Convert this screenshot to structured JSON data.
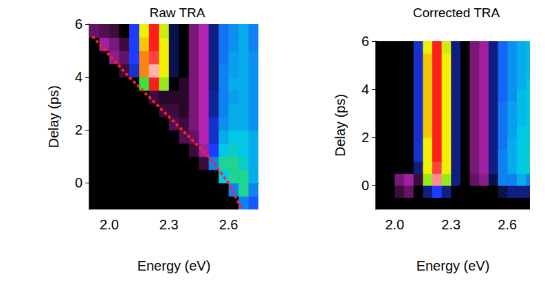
{
  "chart_data": [
    {
      "type": "heatmap",
      "title": "Raw TRA",
      "x_label": "Energy (eV)",
      "y_label": "Delay (ps)",
      "xlim": [
        1.9,
        2.75
      ],
      "ylim": [
        -1,
        6
      ],
      "xticks": [
        {
          "value": 2,
          "label": "2.0"
        },
        {
          "value": 2.3,
          "label": "2.3"
        },
        {
          "value": 2.6,
          "label": "2.6"
        }
      ],
      "yticks": [
        0,
        2,
        4,
        6
      ],
      "cells": {
        "x_edges": [
          1.9,
          1.95,
          2.0,
          2.05,
          2.1,
          2.15,
          2.2,
          2.25,
          2.3,
          2.35,
          2.4,
          2.45,
          2.5,
          2.55,
          2.6,
          2.65,
          2.7,
          2.75
        ],
        "y_edges": [
          -1,
          -0.5,
          0,
          0.5,
          1,
          1.5,
          2,
          2.5,
          3,
          3.5,
          4,
          4.5,
          5,
          5.5,
          6
        ],
        "color_range": [
          -1,
          6
        ],
        "values": [
          [
            0,
            0,
            0,
            0,
            0,
            0,
            0,
            0,
            0,
            0,
            0,
            0,
            0,
            0,
            0,
            1.5,
            1.2
          ],
          [
            0,
            0,
            0,
            0,
            0,
            0,
            0,
            0,
            0,
            0,
            0,
            0,
            0,
            0,
            1.5,
            2.5,
            1.5
          ],
          [
            0,
            0,
            0,
            0,
            0,
            0,
            0,
            0,
            0,
            0,
            0,
            0,
            0,
            2,
            2.5,
            2.5,
            1.8
          ],
          [
            0,
            0,
            0,
            0,
            0,
            0,
            0,
            0,
            0,
            0,
            0,
            -0.3,
            1.5,
            2.5,
            2.5,
            2.2,
            1.8
          ],
          [
            0,
            0,
            0,
            0,
            0,
            0,
            0,
            0,
            0,
            0,
            -0.3,
            -0.8,
            1,
            2,
            2.2,
            2,
            1.8
          ],
          [
            0,
            0,
            0,
            0,
            0,
            0,
            0,
            0,
            0,
            -0.4,
            -0.5,
            -0.9,
            0.8,
            1.8,
            2,
            2,
            1.8
          ],
          [
            0,
            0,
            0,
            0,
            0,
            0,
            0,
            0,
            -0.4,
            -0.3,
            -0.6,
            -0.9,
            0.8,
            1.6,
            1.8,
            1.8,
            1.6
          ],
          [
            0,
            0,
            0,
            0,
            0,
            0,
            0,
            -0.3,
            -0.3,
            -0.2,
            -0.6,
            -0.9,
            0.6,
            1.5,
            1.8,
            1.8,
            1.6
          ],
          [
            0,
            0,
            0,
            0,
            0,
            0,
            -0.3,
            -0.2,
            -0.2,
            -0.2,
            -0.6,
            -0.9,
            0.6,
            1.5,
            1.7,
            1.8,
            1.6
          ],
          [
            0,
            0,
            0,
            0,
            0,
            3,
            5,
            3.5,
            0,
            -0.2,
            -0.6,
            -0.9,
            0.5,
            1.5,
            1.8,
            1.8,
            1.6
          ],
          [
            0,
            0,
            0,
            -0.3,
            0.8,
            4.5,
            5.8,
            4,
            0.3,
            0,
            -0.6,
            -0.9,
            0.5,
            1.5,
            1.7,
            1.8,
            1.6
          ],
          [
            0,
            0,
            -0.7,
            -0.5,
            1,
            4.5,
            5.2,
            4,
            0.3,
            0,
            -0.6,
            -0.9,
            0.5,
            1.4,
            1.7,
            1.8,
            1.6
          ],
          [
            0,
            -0.8,
            -0.6,
            -0.3,
            1,
            4.2,
            5,
            4,
            0.3,
            0,
            -0.6,
            -0.9,
            0.5,
            1.4,
            1.6,
            1.8,
            1.5
          ],
          [
            -0.5,
            -0.4,
            -0.3,
            0,
            1,
            4,
            5,
            3.8,
            0.3,
            0,
            -0.6,
            -0.9,
            0.5,
            1.4,
            1.6,
            1.8,
            1.5
          ]
        ]
      },
      "series": [
        {
          "type": "line",
          "color": "#ff2020",
          "line_style": "dotted",
          "x": [
            1.92,
            2.1,
            2.3,
            2.5,
            2.6,
            2.66
          ],
          "values": [
            5.5,
            4.0,
            2.5,
            1.0,
            0.0,
            -0.9
          ]
        }
      ]
    },
    {
      "type": "heatmap",
      "title": "Corrected TRA",
      "x_label": "Energy (eV)",
      "y_label": "Delay (ps)",
      "xlim": [
        1.9,
        2.72
      ],
      "ylim": [
        -1,
        6
      ],
      "xticks": [
        {
          "value": 2,
          "label": "2.0"
        },
        {
          "value": 2.3,
          "label": "2.3"
        },
        {
          "value": 2.6,
          "label": "2.6"
        }
      ],
      "yticks": [
        0,
        2,
        4,
        6
      ],
      "cells": {
        "x_edges": [
          1.9,
          1.95,
          2.0,
          2.05,
          2.1,
          2.15,
          2.2,
          2.25,
          2.3,
          2.35,
          2.4,
          2.45,
          2.5,
          2.55,
          2.6,
          2.65,
          2.7,
          2.75
        ],
        "y_edges": [
          -1,
          -0.5,
          0,
          0.5,
          1,
          1.5,
          2,
          2.5,
          3,
          3.5,
          4,
          4.5,
          5,
          5.5,
          6
        ],
        "color_range": [
          -1,
          6
        ],
        "values": [
          [
            0,
            0,
            0,
            0,
            0,
            0,
            0,
            0,
            0,
            0,
            0,
            0,
            0,
            0,
            0,
            0,
            0
          ],
          [
            0,
            0,
            -0.3,
            -0.5,
            0,
            0.5,
            1,
            0.5,
            0,
            0,
            0,
            0,
            0,
            0.3,
            0.5,
            0.5,
            0.5
          ],
          [
            0,
            0,
            -0.6,
            -0.8,
            -0.3,
            3.5,
            5.6,
            3.5,
            0.5,
            0,
            -0.5,
            -0.7,
            0.3,
            1.5,
            1.5,
            1.8,
            1.5
          ],
          [
            0,
            0,
            0,
            0,
            0.5,
            4,
            5.2,
            4,
            0.5,
            0,
            -0.6,
            -0.8,
            0.5,
            1.5,
            1.8,
            2,
            2.2
          ],
          [
            0,
            0,
            0,
            0,
            0.8,
            4,
            5,
            4,
            0.5,
            0,
            -0.6,
            -0.8,
            0.5,
            1.5,
            1.8,
            2,
            2.2
          ],
          [
            0,
            0,
            0,
            0,
            0.8,
            4,
            5,
            4,
            0.5,
            0,
            -0.6,
            -0.8,
            0.5,
            1.4,
            1.8,
            2,
            2.1
          ],
          [
            0,
            0,
            0,
            0,
            0.8,
            4.2,
            5,
            4,
            0.5,
            0,
            -0.6,
            -0.8,
            0.5,
            1.4,
            1.7,
            2,
            2.1
          ],
          [
            0,
            0,
            0,
            0,
            0.8,
            4.2,
            5,
            4,
            0.5,
            0,
            -0.6,
            -0.8,
            0.5,
            1.4,
            1.7,
            1.9,
            2
          ],
          [
            0,
            0,
            0,
            0,
            0.8,
            4.2,
            5,
            4,
            0.5,
            0,
            -0.6,
            -0.8,
            0.5,
            1.4,
            1.7,
            1.9,
            2
          ],
          [
            0,
            0,
            0,
            0,
            0.8,
            4.2,
            5,
            4,
            0.5,
            0,
            -0.6,
            -0.8,
            0.5,
            1.3,
            1.6,
            1.9,
            2
          ],
          [
            0,
            0,
            0,
            0,
            0.8,
            4.2,
            5,
            4,
            0.5,
            0,
            -0.6,
            -0.8,
            0.5,
            1.3,
            1.6,
            1.8,
            2
          ],
          [
            0,
            0,
            0,
            0,
            0.8,
            4.2,
            5,
            4,
            0.5,
            0,
            -0.6,
            -0.8,
            0.5,
            1.3,
            1.6,
            1.8,
            1.9
          ],
          [
            0,
            0,
            0,
            0,
            0.8,
            4.2,
            5,
            4,
            0.5,
            0,
            -0.6,
            -0.8,
            0.5,
            1.3,
            1.6,
            1.8,
            1.9
          ],
          [
            0,
            0,
            0,
            0,
            0.8,
            4,
            5,
            3.8,
            0.5,
            0,
            -0.6,
            -0.8,
            0.5,
            1.3,
            1.6,
            1.8,
            1.9
          ]
        ]
      }
    }
  ]
}
